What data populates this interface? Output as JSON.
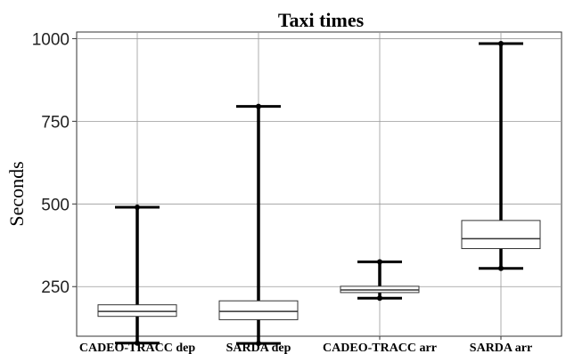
{
  "chart_data": {
    "type": "box",
    "title": "Taxi times",
    "xlabel": "",
    "ylabel": "Seconds",
    "ylim": [
      100,
      1020
    ],
    "yticks": [
      250,
      500,
      750,
      1000
    ],
    "grid": true,
    "categories": [
      "CADEO-TRACC dep",
      "SARDA dep",
      "CADEO-TRACC arr",
      "SARDA arr"
    ],
    "boxes": [
      {
        "category": "CADEO-TRACC dep",
        "min": 79,
        "q1": 160,
        "median": 175,
        "q3": 195,
        "max": 490
      },
      {
        "category": "SARDA dep",
        "min": 78,
        "q1": 150,
        "median": 175,
        "q3": 207,
        "max": 795
      },
      {
        "category": "CADEO-TRACC arr",
        "min": 215,
        "q1": 232,
        "median": 240,
        "q3": 251,
        "max": 325
      },
      {
        "category": "SARDA arr",
        "min": 305,
        "q1": 365,
        "median": 395,
        "q3": 450,
        "max": 985
      }
    ]
  }
}
